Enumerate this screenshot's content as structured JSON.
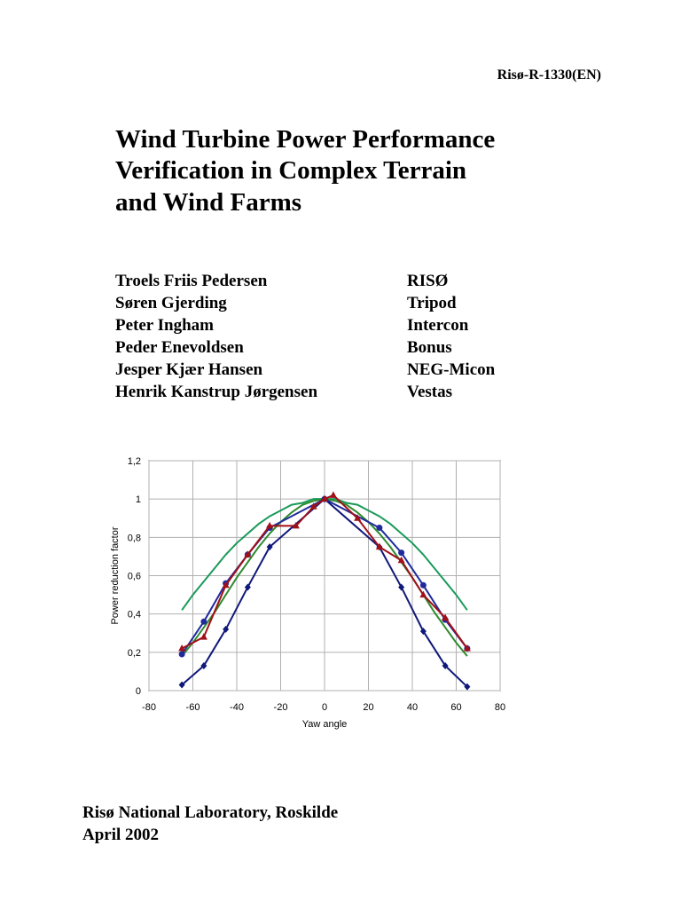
{
  "report_id": "Risø-R-1330(EN)",
  "title": [
    "Wind Turbine Power Performance",
    "Verification in Complex Terrain",
    "and Wind Farms"
  ],
  "authors": [
    [
      "Troels Friis Pedersen",
      "RISØ"
    ],
    [
      "Søren Gjerding",
      "Tripod"
    ],
    [
      "Peter Ingham",
      "Intercon"
    ],
    [
      "Peder Enevoldsen",
      "Bonus"
    ],
    [
      "Jesper Kjær Hansen",
      "NEG-Micon"
    ],
    [
      "Henrik Kanstrup Jørgensen",
      "Vestas"
    ]
  ],
  "chart_data": {
    "type": "line",
    "xlabel": "Yaw angle",
    "ylabel": "Power reduction factor",
    "xlim": [
      -80,
      80
    ],
    "xticks": [
      -80,
      -60,
      -40,
      -20,
      0,
      20,
      40,
      60,
      80
    ],
    "ylim": [
      0,
      1.2
    ],
    "yticks": [
      0,
      {
        "value": 0.2,
        "label": "0,2"
      },
      {
        "value": 0.4,
        "label": "0,4"
      },
      {
        "value": 0.6,
        "label": "0,6"
      },
      {
        "value": 0.8,
        "label": "0,8"
      },
      1,
      {
        "value": 1.2,
        "label": "1,2"
      }
    ],
    "grid": true,
    "series": [
      {
        "color": "#1a9a5a",
        "marker": "none",
        "x": [
          -65,
          -60,
          -55,
          -50,
          -45,
          -40,
          -35,
          -30,
          -25,
          -20,
          -15,
          -10,
          -5,
          0,
          5,
          10,
          15,
          20,
          25,
          30,
          35,
          40,
          45,
          50,
          55,
          60,
          65
        ],
        "values": [
          0.42,
          0.5,
          0.57,
          0.64,
          0.71,
          0.77,
          0.82,
          0.87,
          0.91,
          0.94,
          0.97,
          0.98,
          1.0,
          1.0,
          1.0,
          0.98,
          0.97,
          0.94,
          0.91,
          0.87,
          0.82,
          0.77,
          0.71,
          0.64,
          0.57,
          0.5,
          0.42
        ]
      },
      {
        "color": "#2e8b2e",
        "marker": "none",
        "x": [
          -65,
          -60,
          -55,
          -50,
          -45,
          -40,
          -35,
          -30,
          -25,
          -20,
          -15,
          -10,
          -5,
          0,
          5,
          10,
          15,
          20,
          25,
          30,
          35,
          40,
          45,
          50,
          55,
          60,
          65
        ],
        "values": [
          0.18,
          0.25,
          0.33,
          0.41,
          0.5,
          0.59,
          0.67,
          0.75,
          0.82,
          0.88,
          0.93,
          0.97,
          0.99,
          1.0,
          0.99,
          0.97,
          0.93,
          0.88,
          0.82,
          0.75,
          0.67,
          0.59,
          0.5,
          0.41,
          0.33,
          0.25,
          0.18
        ]
      },
      {
        "color": "#1f2a9c",
        "marker": "circle",
        "x": [
          -65,
          -55,
          -45,
          -35,
          -25,
          0,
          25,
          35,
          45,
          55,
          65
        ],
        "values": [
          0.19,
          0.36,
          0.56,
          0.71,
          0.85,
          1.0,
          0.85,
          0.72,
          0.55,
          0.37,
          0.22
        ]
      },
      {
        "color": "#10187a",
        "marker": "diamond",
        "x": [
          -65,
          -55,
          -45,
          -35,
          -25,
          0,
          25,
          35,
          45,
          55,
          65
        ],
        "values": [
          0.03,
          0.13,
          0.32,
          0.54,
          0.75,
          1.0,
          0.75,
          0.54,
          0.31,
          0.13,
          0.02
        ]
      },
      {
        "color": "#a01018",
        "marker": "triangle",
        "x": [
          -65,
          -55,
          -45,
          -35,
          -25,
          -13,
          -5,
          0,
          4,
          15,
          25,
          35,
          45,
          55,
          65
        ],
        "values": [
          0.22,
          0.28,
          0.55,
          0.71,
          0.86,
          0.86,
          0.96,
          1.0,
          1.02,
          0.9,
          0.75,
          0.68,
          0.5,
          0.38,
          0.22
        ]
      }
    ]
  },
  "footer": [
    "Risø National Laboratory, Roskilde",
    "April 2002"
  ]
}
